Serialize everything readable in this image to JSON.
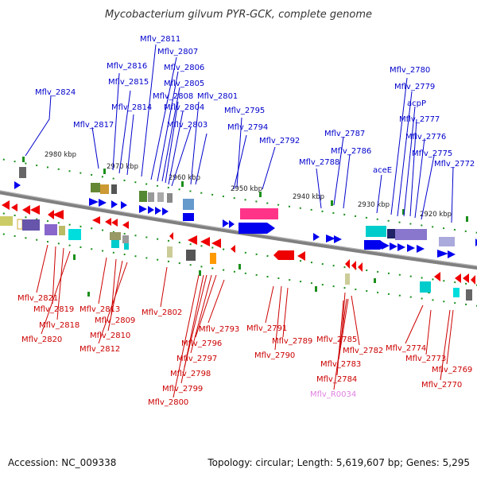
{
  "title": "Mycobacterium gilvum PYR-GCK, complete genome",
  "footer": {
    "accession": "Accession: NC_009338",
    "summary": "Topology: circular; Length: 5,619,607 bp; Genes: 5,295"
  },
  "colors": {
    "plus_label": "#0000cc",
    "minus_label": "#cc0000",
    "rna_label": "#e080e0",
    "backbone": "#808080",
    "tick": "#1a8f1a"
  },
  "ticks": [
    "2980 kbp",
    "2970 kbp",
    "2960 kbp",
    "2950 kbp",
    "2940 kbp",
    "2930 kbp",
    "2920 kbp"
  ],
  "plus_strand_labels": [
    "Mflv_2811",
    "Mflv_2807",
    "Mflv_2816",
    "Mflv_2806",
    "Mflv_2815",
    "Mflv_2805",
    "Mflv_2824",
    "Mflv_2808",
    "Mflv_2801",
    "Mflv_2814",
    "Mflv_2804",
    "Mflv_2795",
    "Mflv_2817",
    "Mflv_2803",
    "Mflv_2794",
    "Mflv_2792",
    "Mflv_2787",
    "Mflv_2786",
    "Mflv_2788",
    "Mflv_2780",
    "Mflv_2779",
    "acpP",
    "Mflv_2777",
    "Mflv_2776",
    "Mflv_2775",
    "aceE",
    "Mflv_2772"
  ],
  "minus_strand_labels": [
    "Mflv_2821",
    "Mflv_2819",
    "Mflv_2818",
    "Mflv_2820",
    "Mflv_2813",
    "Mflv_2809",
    "Mflv_2810",
    "Mflv_2812",
    "Mflv_2802",
    "Mflv_2793",
    "Mflv_2796",
    "Mflv_2797",
    "Mflv_2798",
    "Mflv_2799",
    "Mflv_2800",
    "Mflv_2791",
    "Mflv_2790",
    "Mflv_2789",
    "Mflv_2785",
    "Mflv_2782",
    "Mflv_2783",
    "Mflv_2784",
    "Mflv_2774",
    "Mflv_2773",
    "Mflv_2769",
    "Mflv_2770"
  ],
  "rna_labels": [
    "Mflv_R0034"
  ]
}
